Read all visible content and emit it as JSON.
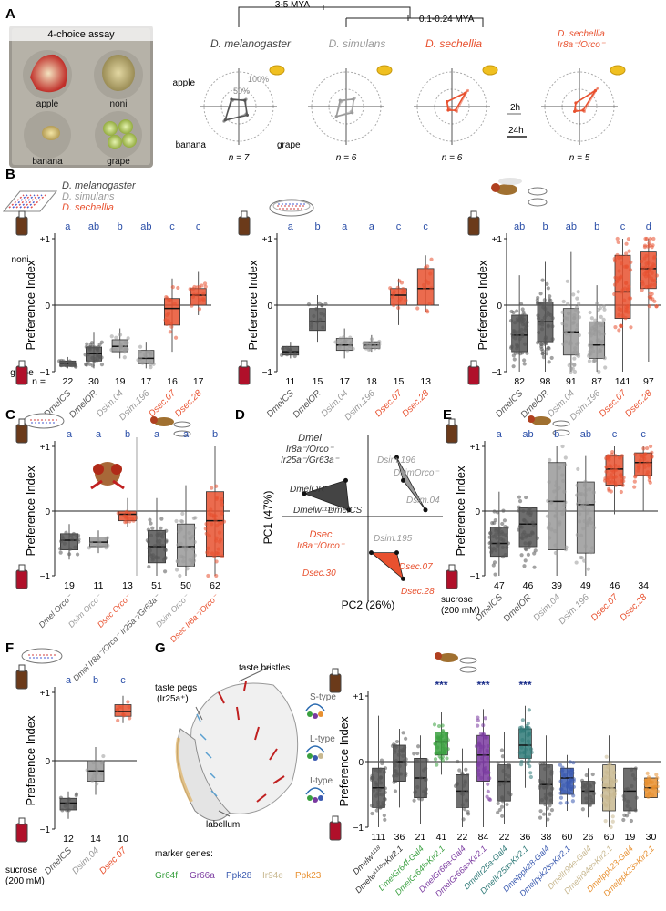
{
  "panels": {
    "A": {
      "letter": "A",
      "photo_title": "4-choice assay",
      "photo_labels": [
        "apple",
        "noni",
        "banana",
        "grape"
      ],
      "tree_labels": [
        "3-5 MYA",
        "0.1-0.24 MYA"
      ],
      "species": [
        "D. melanogaster",
        "D. simulans",
        "D. sechellia"
      ],
      "mutant_line1": "D. sechellia",
      "mutant_line2": "Ir8a⁻/Orco⁻",
      "radar_axis_labels": [
        "apple",
        "banana",
        "grape"
      ],
      "radar_pct": [
        "100%",
        "50%"
      ],
      "ns": [
        "n = 7",
        "n = 6",
        "n = 6",
        "n = 5"
      ],
      "legend_times": [
        "2h",
        "24h"
      ],
      "colors": {
        "mel": "#555555",
        "sim": "#9a9a9a",
        "sec": "#e8512f"
      }
    },
    "B": {
      "letter": "B",
      "legend": [
        "D. melanogaster",
        "D. simulans",
        "D. sechellia"
      ],
      "ylabel": "Preference Index",
      "yticks": [
        "+1",
        "0",
        "−1"
      ],
      "top_label": "noni",
      "bottom_label": "grape",
      "n_prefix": "n =",
      "strains": [
        "DmelCS",
        "DmelOR",
        "Dsim.04",
        "Dsim.196",
        "Dsec.07",
        "Dsec.28"
      ]
    },
    "C": {
      "letter": "C"
    },
    "D": {
      "letter": "D"
    },
    "E": {
      "letter": "E",
      "sucrose_label": "sucrose",
      "sucrose_conc": "(200 mM)"
    },
    "F": {
      "letter": "F"
    },
    "G": {
      "letter": "G",
      "anatomy": [
        "taste pegs",
        "(Ir25a⁺)",
        "taste bristles",
        "labellum",
        "S-type",
        "L-type",
        "I-type"
      ],
      "marker_title": "marker genes:",
      "markers": [
        {
          "name": "Gr64f",
          "color": "#3aa040"
        },
        {
          "name": "Gr66a",
          "color": "#7a3aa0"
        },
        {
          "name": "Ppk28",
          "color": "#3a5ab0"
        },
        {
          "name": "Ir94e",
          "color": "#c8b890"
        },
        {
          "name": "Ppk23",
          "color": "#e89030"
        }
      ]
    }
  },
  "chart_data": [
    {
      "id": "A-radar",
      "type": "radar",
      "axes": [
        "apple",
        "noni",
        "grape",
        "banana"
      ],
      "rmax_percent": 100,
      "series": [
        {
          "name": "D. melanogaster",
          "values": [
            25,
            30,
            30,
            60
          ],
          "values_24h": [
            30,
            25,
            35,
            55
          ]
        },
        {
          "name": "D. simulans",
          "values": [
            20,
            35,
            20,
            40
          ],
          "values_24h": [
            25,
            30,
            25,
            40
          ]
        },
        {
          "name": "D. sechellia",
          "values": [
            20,
            65,
            20,
            10
          ],
          "values_24h": [
            20,
            55,
            15,
            15
          ]
        },
        {
          "name": "D. sechellia Ir8a⁻/Orco⁻",
          "values": [
            15,
            75,
            20,
            15
          ],
          "values_24h": [
            15,
            65,
            15,
            20
          ]
        }
      ],
      "n": [
        "7",
        "6",
        "6",
        "5"
      ]
    },
    {
      "id": "B1",
      "type": "box",
      "categories": [
        "DmelCS",
        "DmelOR",
        "Dsim.04",
        "Dsim.196",
        "Dsec.07",
        "Dsec.28"
      ],
      "colors": [
        "#555555",
        "#555555",
        "#999999",
        "#999999",
        "#e8512f",
        "#e8512f"
      ],
      "letters": [
        "a",
        "ab",
        "b",
        "ab",
        "c",
        "c"
      ],
      "n": [
        "22",
        "30",
        "19",
        "17",
        "16",
        "17"
      ],
      "ylim": [
        -1,
        1
      ],
      "box": [
        {
          "q1": -0.92,
          "med": -0.88,
          "q3": -0.84,
          "lo": -0.95,
          "hi": -0.78
        },
        {
          "q1": -0.84,
          "med": -0.73,
          "q3": -0.63,
          "lo": -0.95,
          "hi": -0.4
        },
        {
          "q1": -0.7,
          "med": -0.62,
          "q3": -0.52,
          "lo": -0.8,
          "hi": -0.35
        },
        {
          "q1": -0.88,
          "med": -0.8,
          "q3": -0.68,
          "lo": -0.95,
          "hi": -0.55
        },
        {
          "q1": -0.3,
          "med": -0.05,
          "q3": 0.1,
          "lo": -0.7,
          "hi": 0.4
        },
        {
          "q1": 0.0,
          "med": 0.15,
          "q3": 0.25,
          "lo": -0.15,
          "hi": 0.5
        }
      ]
    },
    {
      "id": "B2",
      "type": "box",
      "categories": [
        "DmelCS",
        "DmelOR",
        "Dsim.04",
        "Dsim.196",
        "Dsec.07",
        "Dsec.28"
      ],
      "colors": [
        "#555555",
        "#555555",
        "#999999",
        "#999999",
        "#e8512f",
        "#e8512f"
      ],
      "letters": [
        "a",
        "b",
        "a",
        "a",
        "c",
        "c"
      ],
      "n": [
        "11",
        "15",
        "17",
        "18",
        "15",
        "13"
      ],
      "ylim": [
        -1,
        1
      ],
      "box": [
        {
          "q1": -0.75,
          "med": -0.7,
          "q3": -0.62,
          "lo": -0.8,
          "hi": -0.55
        },
        {
          "q1": -0.38,
          "med": -0.25,
          "q3": -0.05,
          "lo": -0.55,
          "hi": 0.15
        },
        {
          "q1": -0.68,
          "med": -0.6,
          "q3": -0.5,
          "lo": -0.8,
          "hi": -0.35
        },
        {
          "q1": -0.65,
          "med": -0.6,
          "q3": -0.55,
          "lo": -0.7,
          "hi": -0.45
        },
        {
          "q1": 0.0,
          "med": 0.15,
          "q3": 0.25,
          "lo": -0.3,
          "hi": 0.4
        },
        {
          "q1": 0.0,
          "med": 0.25,
          "q3": 0.55,
          "lo": -0.1,
          "hi": 0.75
        }
      ]
    },
    {
      "id": "B3",
      "type": "box",
      "categories": [
        "DmelCS",
        "DmelOR",
        "Dsim.04",
        "Dsim.196",
        "Dsec.07",
        "Dsec.28"
      ],
      "colors": [
        "#555555",
        "#555555",
        "#999999",
        "#999999",
        "#e8512f",
        "#e8512f"
      ],
      "letters": [
        "ab",
        "b",
        "ab",
        "b",
        "c",
        "d"
      ],
      "n": [
        "82",
        "98",
        "91",
        "87",
        "141",
        "97"
      ],
      "ylim": [
        -1,
        1
      ],
      "box": [
        {
          "q1": -0.7,
          "med": -0.45,
          "q3": -0.15,
          "lo": -1.0,
          "hi": 0.45
        },
        {
          "q1": -0.55,
          "med": -0.25,
          "q3": 0.05,
          "lo": -1.0,
          "hi": 0.65
        },
        {
          "q1": -0.75,
          "med": -0.4,
          "q3": -0.05,
          "lo": -1.0,
          "hi": 0.8
        },
        {
          "q1": -0.8,
          "med": -0.6,
          "q3": -0.25,
          "lo": -1.0,
          "hi": 0.3
        },
        {
          "q1": -0.2,
          "med": 0.2,
          "q3": 0.75,
          "lo": -1.0,
          "hi": 1.0
        },
        {
          "q1": 0.25,
          "med": 0.55,
          "q3": 0.8,
          "lo": -0.85,
          "hi": 1.0
        }
      ]
    },
    {
      "id": "C",
      "type": "box",
      "categories": [
        "Dmel Orco⁻",
        "Dsim Orco⁻",
        "Dsec Orco⁻",
        "Dmel Ir8a⁻/Orco⁻ Ir25a⁻/Gr63a⁻",
        "Dsim Orco⁻",
        "Dsec Ir8a⁻/Orco⁻"
      ],
      "colors": [
        "#555555",
        "#999999",
        "#e8512f",
        "#555555",
        "#999999",
        "#e8512f"
      ],
      "letters": [
        "a",
        "a",
        "b",
        "a",
        "a",
        "b"
      ],
      "n": [
        "19",
        "11",
        "13",
        "51",
        "50",
        "62"
      ],
      "ylim": [
        -1,
        1
      ],
      "box": [
        {
          "q1": -0.6,
          "med": -0.45,
          "q3": -0.35,
          "lo": -0.75,
          "hi": -0.2
        },
        {
          "q1": -0.55,
          "med": -0.48,
          "q3": -0.4,
          "lo": -0.65,
          "hi": -0.3
        },
        {
          "q1": -0.15,
          "med": -0.05,
          "q3": 0.0,
          "lo": -0.25,
          "hi": 0.2
        },
        {
          "q1": -0.8,
          "med": -0.55,
          "q3": -0.3,
          "lo": -1.0,
          "hi": 0.2
        },
        {
          "q1": -0.85,
          "med": -0.55,
          "q3": -0.2,
          "lo": -1.0,
          "hi": 0.4
        },
        {
          "q1": -0.7,
          "med": -0.15,
          "q3": 0.3,
          "lo": -1.0,
          "hi": 1.0
        }
      ]
    },
    {
      "id": "D",
      "type": "pca",
      "xlabel": "PC2 (26%)",
      "ylabel": "PC1 (47%)",
      "groups": [
        {
          "name": "mel",
          "color": "#444444",
          "points": [
            [
              -1.0,
              0.35
            ],
            [
              -0.35,
              0.55
            ],
            [
              -0.3,
              0.1
            ]
          ]
        },
        {
          "name": "sim",
          "color": "#9a9a9a",
          "points": [
            [
              0.45,
              0.9
            ],
            [
              0.55,
              0.55
            ],
            [
              0.9,
              0.1
            ]
          ]
        },
        {
          "name": "sec",
          "color": "#e8512f",
          "points": [
            [
              0.05,
              -0.55
            ],
            [
              0.45,
              -0.55
            ],
            [
              0.55,
              -0.95
            ]
          ]
        }
      ],
      "labels": [
        "Dmel",
        "Ir8a⁻/Orco⁻",
        "Ir25a⁻/Gr63a⁻",
        "DmelOR",
        "Dmelw¹¹¹⁸",
        "DmelCS",
        "Dsim.196",
        "DsimOrco⁻",
        "Dsim.04",
        "Dsim.195",
        "Dsec",
        "Ir8a⁻/Orco⁻",
        "Dsec.07",
        "Dsec.30",
        "Dsec.28"
      ]
    },
    {
      "id": "E",
      "type": "box",
      "categories": [
        "DmelCS",
        "DmelOR",
        "Dsim.04",
        "Dsim.196",
        "Dsec.07",
        "Dsec.28"
      ],
      "colors": [
        "#555555",
        "#555555",
        "#999999",
        "#999999",
        "#e8512f",
        "#e8512f"
      ],
      "letters": [
        "a",
        "ab",
        "b",
        "ab",
        "c",
        "c"
      ],
      "n": [
        "47",
        "46",
        "39",
        "49",
        "46",
        "34"
      ],
      "ylim": [
        -1,
        1
      ],
      "box": [
        {
          "q1": -0.7,
          "med": -0.5,
          "q3": -0.25,
          "lo": -1.0,
          "hi": 0.3
        },
        {
          "q1": -0.55,
          "med": -0.2,
          "q3": 0.05,
          "lo": -0.95,
          "hi": 0.55
        },
        {
          "q1": -0.6,
          "med": 0.15,
          "q3": 0.75,
          "lo": -1.0,
          "hi": 1.0
        },
        {
          "q1": -0.65,
          "med": 0.1,
          "q3": 0.45,
          "lo": -1.0,
          "hi": 0.85
        },
        {
          "q1": 0.4,
          "med": 0.65,
          "q3": 0.85,
          "lo": -0.05,
          "hi": 1.0
        },
        {
          "q1": 0.55,
          "med": 0.75,
          "q3": 0.9,
          "lo": 0.0,
          "hi": 1.0
        }
      ]
    },
    {
      "id": "F",
      "type": "box",
      "categories": [
        "DmelCS",
        "Dsim.04",
        "Dsec.07"
      ],
      "colors": [
        "#555555",
        "#999999",
        "#e8512f"
      ],
      "letters": [
        "a",
        "b",
        "c"
      ],
      "n": [
        "12",
        "14",
        "10"
      ],
      "ylim": [
        -1,
        1
      ],
      "box": [
        {
          "q1": -0.72,
          "med": -0.62,
          "q3": -0.55,
          "lo": -0.85,
          "hi": -0.45
        },
        {
          "q1": -0.3,
          "med": -0.15,
          "q3": 0.0,
          "lo": -0.5,
          "hi": 0.2
        },
        {
          "q1": 0.65,
          "med": 0.72,
          "q3": 0.82,
          "lo": 0.55,
          "hi": 0.95
        }
      ]
    },
    {
      "id": "G",
      "type": "box",
      "categories": [
        "Dmelw¹¹¹⁸",
        "Dmelw¹¹¹⁸>Kir2.1",
        "DmelGr64f-Gal4",
        "DmelGr64f>Kir2.1",
        "DmelGr66a-Gal4",
        "DmelGr66a>Kir2.1",
        "DmelIr25a-Gal4",
        "DmelIr25a>Kir2.1",
        "Dmelppk28-Gal4",
        "Dmelppk28>Kir2.1",
        "DmelIr94e-Gal4",
        "DmelIr94e>Kir2.1",
        "Dmelppk23-Gal4",
        "Dmelppk23>Kir2.1"
      ],
      "colors": [
        "#555555",
        "#555555",
        "#555555",
        "#3aa040",
        "#555555",
        "#7a3aa0",
        "#555555",
        "#2f7a78",
        "#555555",
        "#3a5ab0",
        "#555555",
        "#c8b890",
        "#555555",
        "#e89030"
      ],
      "label_colors": [
        "#333333",
        "#333333",
        "#3aa040",
        "#3aa040",
        "#7a3aa0",
        "#7a3aa0",
        "#2f7a78",
        "#2f7a78",
        "#3a5ab0",
        "#3a5ab0",
        "#c8b890",
        "#c8b890",
        "#e89030",
        "#e89030"
      ],
      "stars": [
        "",
        "",
        "",
        "***",
        "",
        "***",
        "",
        "***",
        "",
        "",
        "",
        "",
        "",
        ""
      ],
      "n": [
        "111",
        "36",
        "21",
        "41",
        "22",
        "84",
        "22",
        "36",
        "38",
        "60",
        "26",
        "60",
        "19",
        "30"
      ],
      "ylim": [
        -1,
        1
      ],
      "box": [
        {
          "q1": -0.7,
          "med": -0.4,
          "q3": -0.1,
          "lo": -1.0,
          "hi": 0.7
        },
        {
          "q1": -0.3,
          "med": 0.0,
          "q3": 0.25,
          "lo": -0.7,
          "hi": 0.5
        },
        {
          "q1": -0.55,
          "med": -0.25,
          "q3": 0.05,
          "lo": -0.95,
          "hi": 0.4
        },
        {
          "q1": 0.1,
          "med": 0.3,
          "q3": 0.45,
          "lo": -0.2,
          "hi": 0.75
        },
        {
          "q1": -0.7,
          "med": -0.45,
          "q3": -0.2,
          "lo": -1.0,
          "hi": 0.2
        },
        {
          "q1": -0.3,
          "med": 0.1,
          "q3": 0.4,
          "lo": -1.0,
          "hi": 0.8
        },
        {
          "q1": -0.6,
          "med": -0.3,
          "q3": -0.05,
          "lo": -0.95,
          "hi": 0.45
        },
        {
          "q1": 0.05,
          "med": 0.25,
          "q3": 0.5,
          "lo": -0.4,
          "hi": 0.85
        },
        {
          "q1": -0.65,
          "med": -0.35,
          "q3": -0.05,
          "lo": -1.0,
          "hi": 0.4
        },
        {
          "q1": -0.5,
          "med": -0.25,
          "q3": -0.1,
          "lo": -0.75,
          "hi": 0.1
        },
        {
          "q1": -0.65,
          "med": -0.45,
          "q3": -0.3,
          "lo": -0.85,
          "hi": -0.1
        },
        {
          "q1": -0.75,
          "med": -0.4,
          "q3": -0.05,
          "lo": -1.0,
          "hi": 0.4
        },
        {
          "q1": -0.75,
          "med": -0.45,
          "q3": -0.1,
          "lo": -1.0,
          "hi": 0.2
        },
        {
          "q1": -0.55,
          "med": -0.4,
          "q3": -0.25,
          "lo": -0.7,
          "hi": -0.1
        }
      ]
    }
  ]
}
